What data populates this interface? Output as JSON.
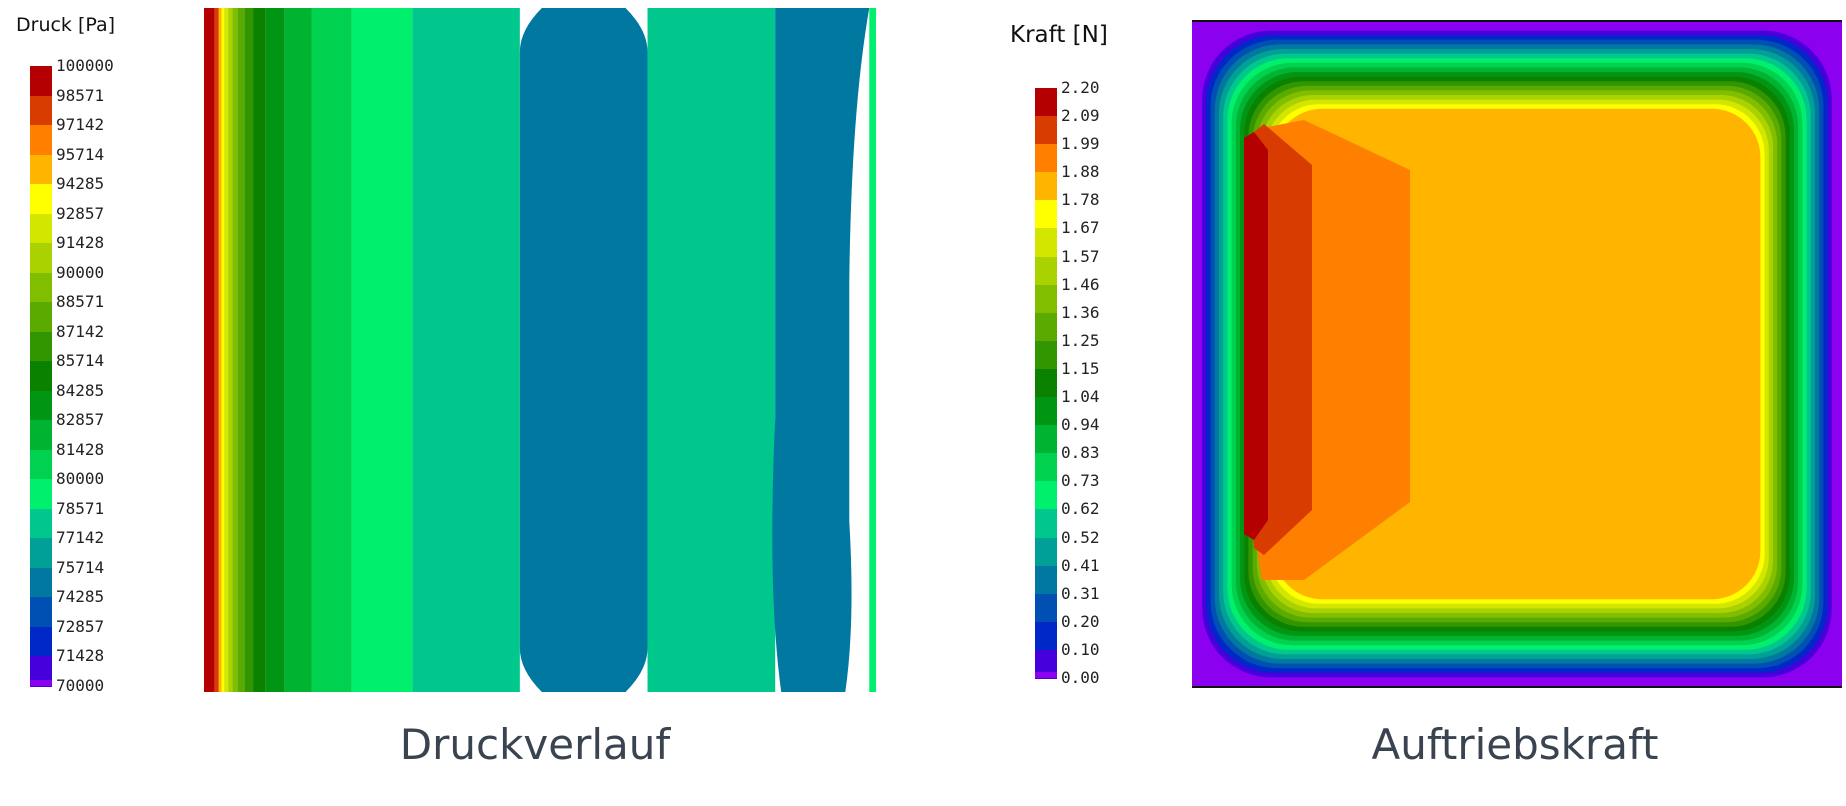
{
  "chart_data": [
    {
      "type": "heatmap",
      "title": "Druckverlauf",
      "legend_title": "Druck [Pa]",
      "legend_placement": "left",
      "scale_ticks": [
        "100000",
        "98571",
        "97142",
        "95714",
        "94285",
        "92857",
        "91428",
        "90000",
        "88571",
        "87142",
        "85714",
        "84285",
        "82857",
        "81428",
        "80000",
        "78571",
        "77142",
        "75714",
        "74285",
        "72857",
        "71428",
        "70000"
      ],
      "colors": [
        "#b40000",
        "#d83c00",
        "#ff7f00",
        "#ffb400",
        "#ffff00",
        "#d2e600",
        "#aad200",
        "#82be00",
        "#5aaa00",
        "#329600",
        "#0a8200",
        "#009614",
        "#00b432",
        "#00d250",
        "#00f06e",
        "#00c88c",
        "#00a096",
        "#0078a0",
        "#0050b4",
        "#0028c8",
        "#4600dc",
        "#8c00f0"
      ],
      "bands": [
        {
          "value": "100000",
          "from": 0.0,
          "to": 0.016
        },
        {
          "value": "98571",
          "from": 0.016,
          "to": 0.022
        },
        {
          "value": "95714",
          "from": 0.022,
          "to": 0.026
        },
        {
          "value": "94285",
          "from": 0.026,
          "to": 0.03
        },
        {
          "value": "92857",
          "from": 0.03,
          "to": 0.036
        },
        {
          "value": "91428",
          "from": 0.036,
          "to": 0.042
        },
        {
          "value": "90000",
          "from": 0.042,
          "to": 0.05
        },
        {
          "value": "88571",
          "from": 0.05,
          "to": 0.06
        },
        {
          "value": "87142",
          "from": 0.06,
          "to": 0.073
        },
        {
          "value": "85714",
          "from": 0.073,
          "to": 0.092
        },
        {
          "value": "84285",
          "from": 0.092,
          "to": 0.12
        },
        {
          "value": "82857",
          "from": 0.12,
          "to": 0.16
        },
        {
          "value": "81428",
          "from": 0.16,
          "to": 0.22
        },
        {
          "value": "80000",
          "from": 0.22,
          "to": 0.31
        },
        {
          "value": "78571",
          "from": 0.31,
          "to": 0.47
        },
        {
          "value": "75714",
          "from": 0.47,
          "to": 0.66
        },
        {
          "value": "78571",
          "from": 0.66,
          "to": 0.85
        },
        {
          "value": "75714",
          "from": 0.85,
          "to": 0.99
        },
        {
          "value": "80000",
          "from": 0.99,
          "to": 1.0
        }
      ]
    },
    {
      "type": "heatmap",
      "title": "Auftriebskraft",
      "legend_title": "Kraft [N]",
      "legend_placement": "left",
      "scale_ticks": [
        "2.20",
        "2.09",
        "1.99",
        "1.88",
        "1.78",
        "1.67",
        "1.57",
        "1.46",
        "1.36",
        "1.25",
        "1.15",
        "1.04",
        "0.94",
        "0.83",
        "0.73",
        "0.62",
        "0.52",
        "0.41",
        "0.31",
        "0.20",
        "0.10",
        "0.00"
      ],
      "colors": [
        "#b40000",
        "#d83c00",
        "#ff7f00",
        "#ffb400",
        "#ffff00",
        "#d2e600",
        "#aad200",
        "#82be00",
        "#5aaa00",
        "#329600",
        "#0a8200",
        "#009614",
        "#00b432",
        "#00d250",
        "#00f06e",
        "#00c88c",
        "#00a096",
        "#0078a0",
        "#0050b4",
        "#0028c8",
        "#4600dc",
        "#8c00f0"
      ],
      "peak_value": "2.20",
      "plateau_value": "1.78",
      "edge_value": "0.00"
    }
  ],
  "captions": {
    "left": "Druckverlauf",
    "right": "Auftriebskraft"
  }
}
